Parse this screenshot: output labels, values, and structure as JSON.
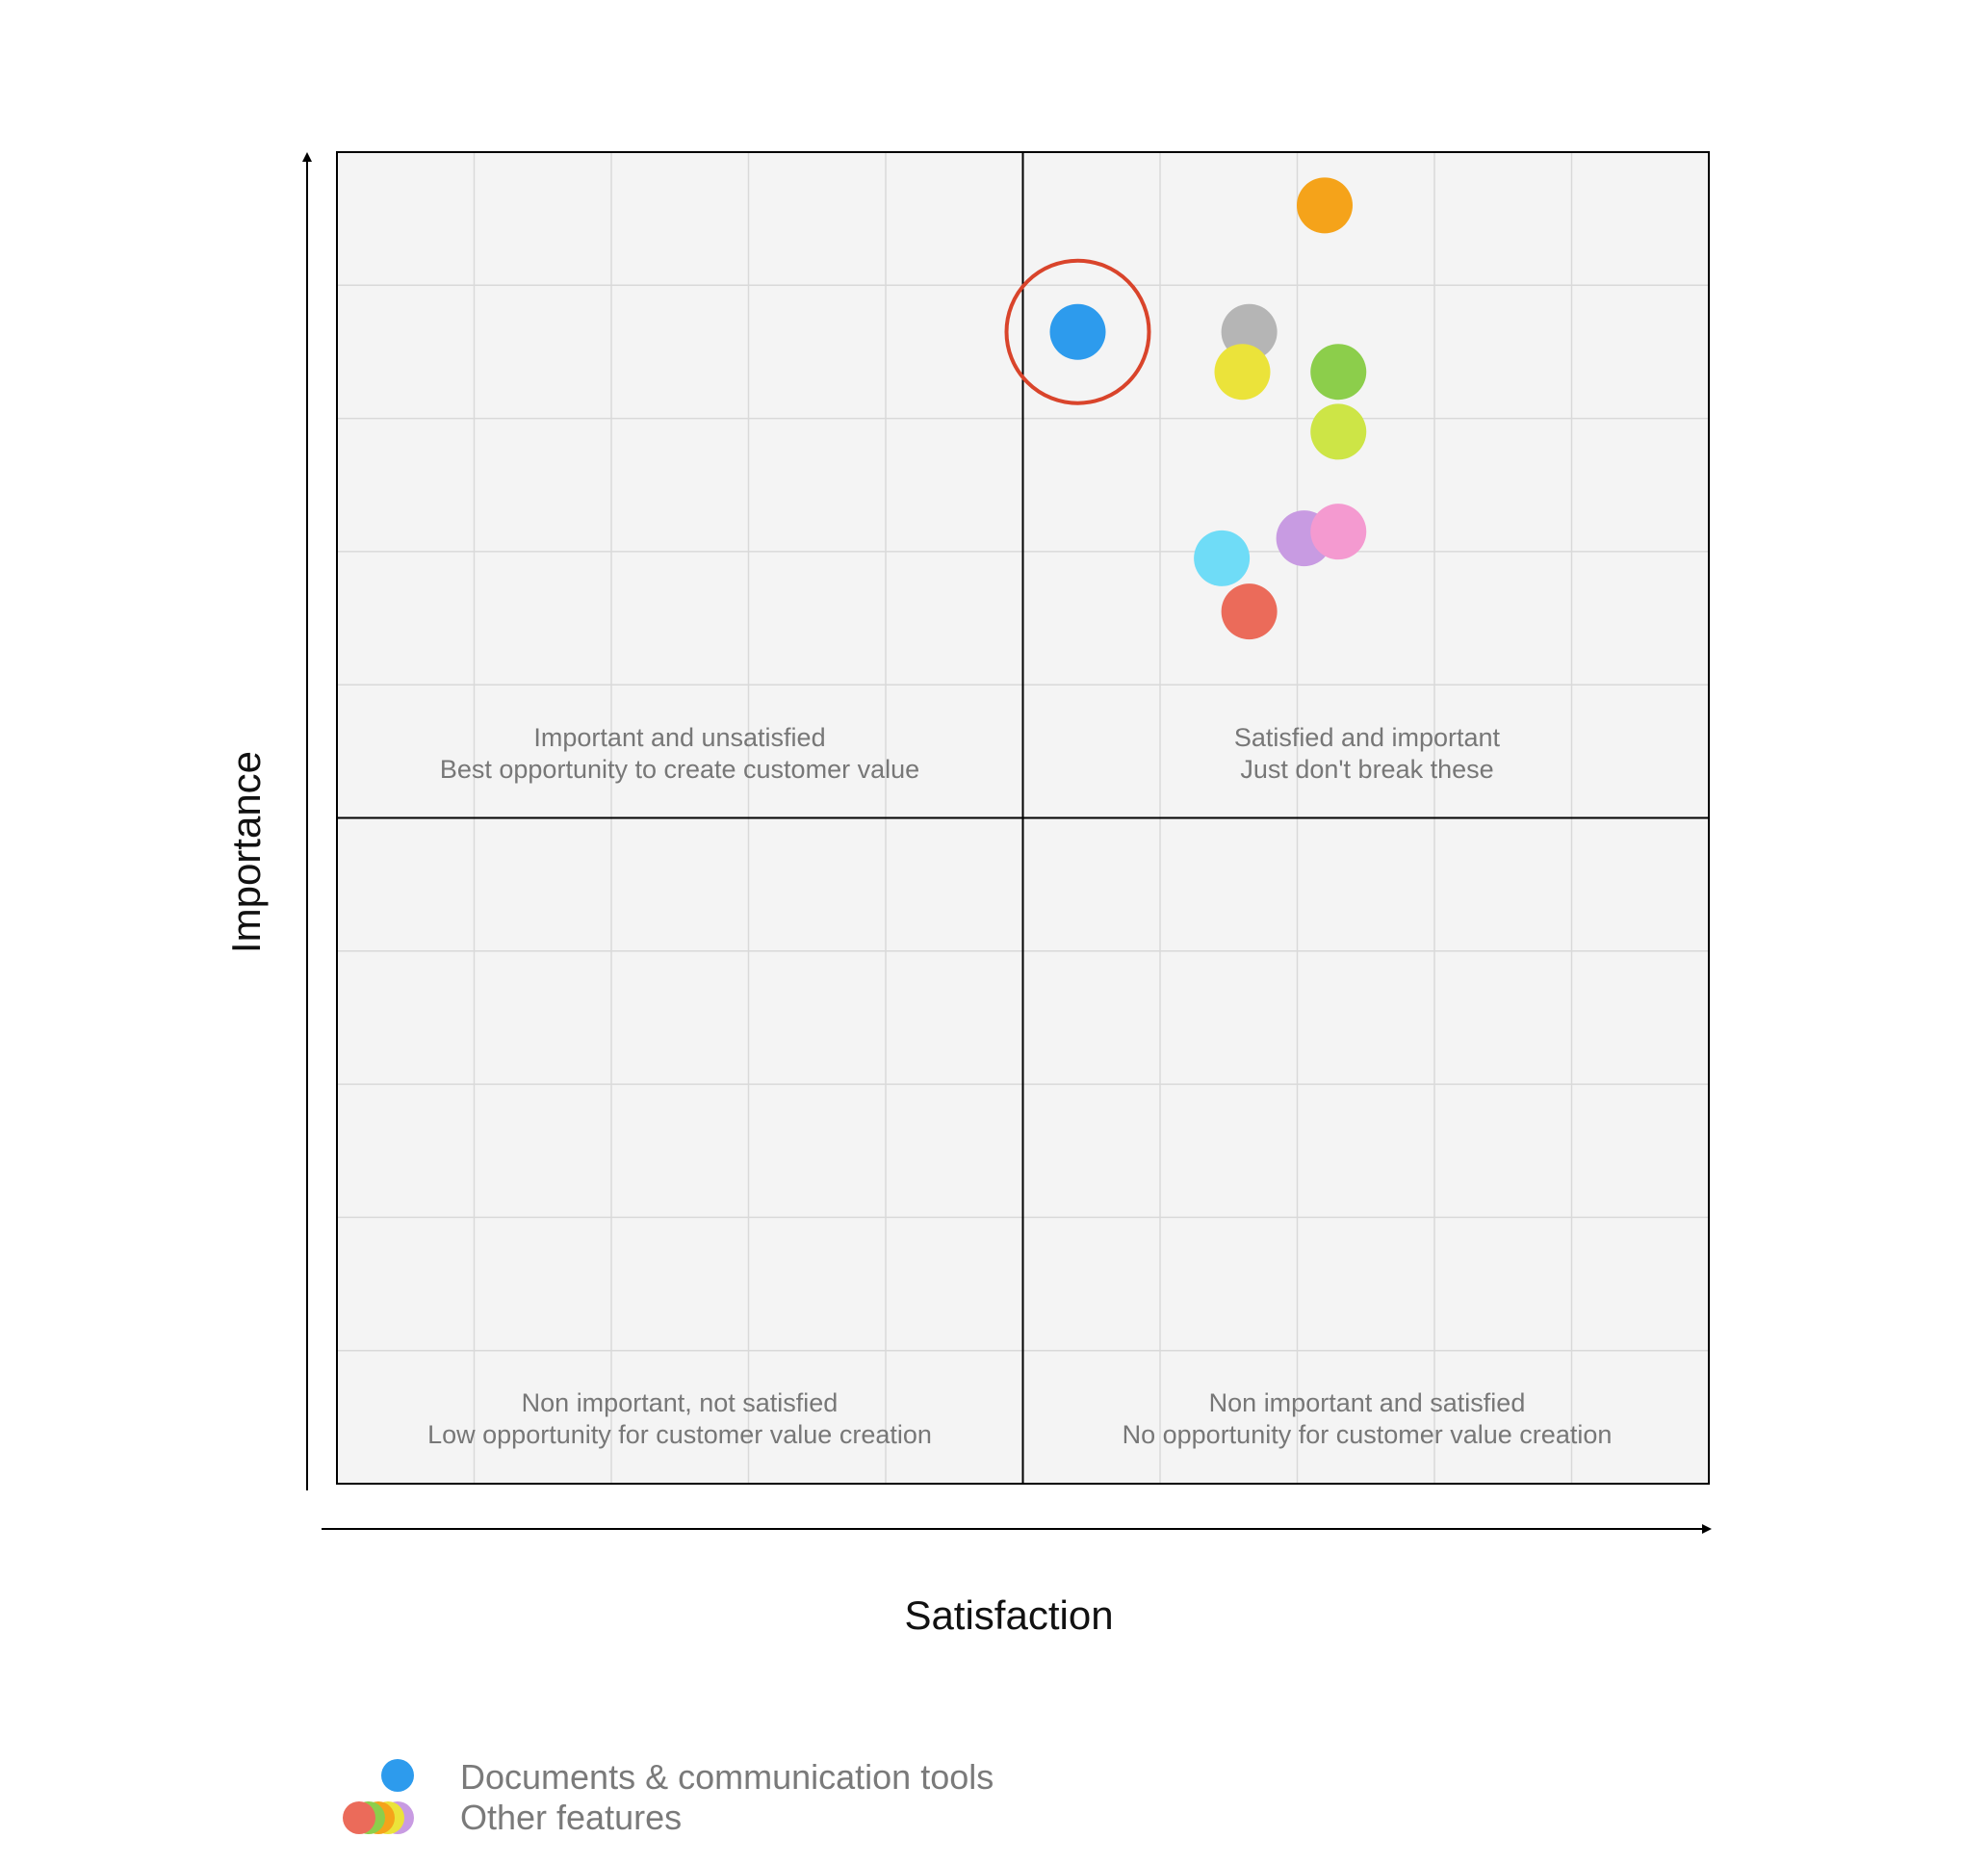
{
  "chart_data": {
    "type": "scatter",
    "xlabel": "Satisfaction",
    "ylabel": "Importance",
    "xlim": [
      0,
      10
    ],
    "ylim": [
      0,
      10
    ],
    "grid": true,
    "midpoint": [
      5,
      5
    ],
    "quadrants": [
      {
        "id": "top-left",
        "line1": "Important and unsatisfied",
        "line2": "Best opportunity to create customer value"
      },
      {
        "id": "top-right",
        "line1": "Satisfied and important",
        "line2": "Just don't break these"
      },
      {
        "id": "bottom-left",
        "line1": "Non important, not satisfied",
        "line2": "Low opportunity for customer value creation"
      },
      {
        "id": "bottom-right",
        "line1": "Non important and satisfied",
        "line2": "No opportunity for customer value creation"
      }
    ],
    "series": [
      {
        "name": "Documents & communication tools",
        "color": "#2d9bed",
        "highlighted": true,
        "points": [
          {
            "x": 5.4,
            "y": 8.65
          }
        ]
      },
      {
        "name": "Other features",
        "points": [
          {
            "x": 7.2,
            "y": 9.6,
            "color": "#f5a31a"
          },
          {
            "x": 6.65,
            "y": 8.65,
            "color": "#b5b5b5"
          },
          {
            "x": 6.6,
            "y": 8.35,
            "color": "#ebe33a"
          },
          {
            "x": 7.3,
            "y": 8.35,
            "color": "#8cce4b"
          },
          {
            "x": 7.3,
            "y": 7.9,
            "color": "#cde546"
          },
          {
            "x": 6.45,
            "y": 6.95,
            "color": "#6fdcf7"
          },
          {
            "x": 7.05,
            "y": 7.1,
            "color": "#c89be2"
          },
          {
            "x": 7.3,
            "y": 7.15,
            "color": "#f49ad0"
          },
          {
            "x": 6.65,
            "y": 6.55,
            "color": "#eb6b5a"
          }
        ]
      }
    ],
    "highlight_color": "#d9442b",
    "legend": {
      "position": "bottom-left",
      "items": [
        {
          "label": "Documents & communication tools",
          "colors": [
            "#2d9bed"
          ]
        },
        {
          "label": "Other features",
          "colors": [
            "#c89be2",
            "#ebe33a",
            "#f5a31a",
            "#8cce4b",
            "#eb6b5a"
          ]
        }
      ]
    }
  }
}
